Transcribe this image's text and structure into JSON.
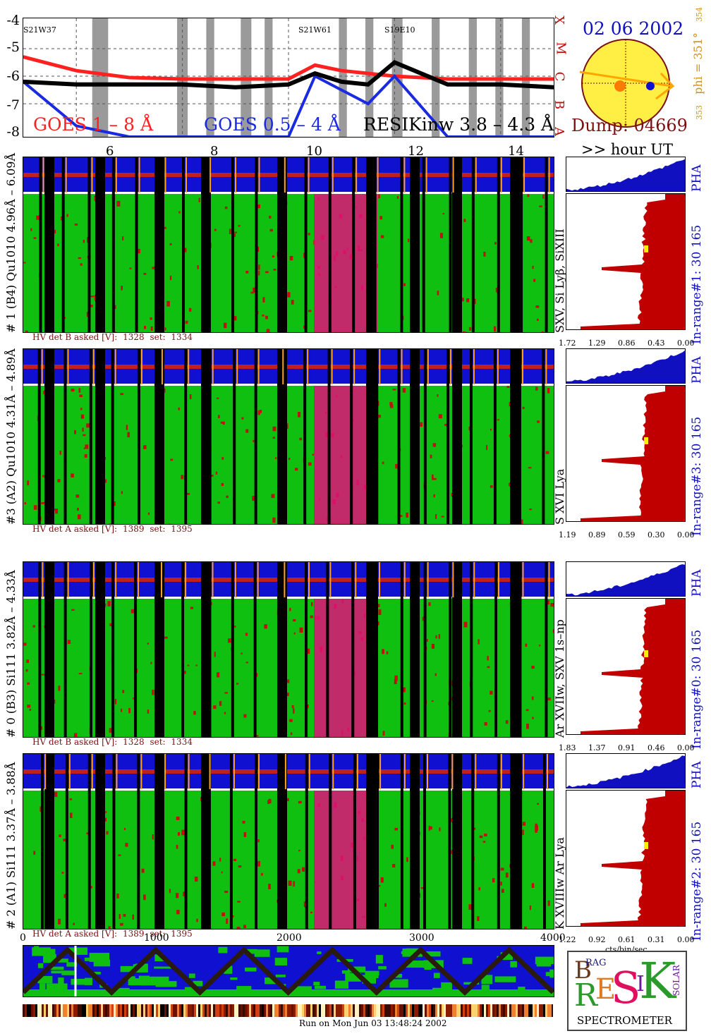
{
  "header": {
    "y_ticks": [
      "-4",
      "-5",
      "-6",
      "-7",
      "-8"
    ],
    "flare_classes": [
      "X",
      "M",
      "C",
      "B",
      "A"
    ],
    "legend_goes_long": "GOES 1 – 8 Å",
    "legend_goes_short": "GOES 0.5 – 4 Å",
    "legend_resik": "RESIKinw 3.8 – 4.3 Å",
    "regions": [
      "S21W37",
      "S21W61",
      "S19E10"
    ],
    "hour_ticks": [
      "6",
      "8",
      "10",
      "12",
      "14"
    ],
    "hour_unit": ">> hour UT"
  },
  "sun": {
    "date": "02 06 2002",
    "dump": "Dump: 04669",
    "phi": "phi = 351°",
    "phi_top": "354",
    "phi_bottom": "353"
  },
  "detectors": [
    {
      "label": "# 1 (B4) Qu1010 4.96Å – 6.09Å",
      "lines": "SXV, Si Lyβ, SiXIII",
      "range": "In-range#1:    30 165",
      "hv_label": "HV det B asked [V]:",
      "hv_asked": "1328",
      "hv_set_label": "set:",
      "hv_set": "1334",
      "scale": [
        "1.72",
        "1.29",
        "0.86",
        "0.43",
        "0.00"
      ],
      "pha": "PHA"
    },
    {
      "label": "#3 (A2) Qu1010  4.31Å – 4.89Å",
      "lines": "S XVI Lya",
      "range": "In-range#3:    30 165",
      "hv_label": "HV det A asked [V]:",
      "hv_asked": "1389",
      "hv_set_label": "set:",
      "hv_set": "1395",
      "scale": [
        "1.19",
        "0.89",
        "0.59",
        "0.30",
        "0.00"
      ],
      "pha": "PHA"
    },
    {
      "label": "# 0 (B3) Si111  3.82Å – 4.33Å",
      "lines": "Ar XVIIw,  SXV 1s–np",
      "range": "In-range#0:    30 165",
      "hv_label": "HV det B asked [V]:",
      "hv_asked": "1328",
      "hv_set_label": "set:",
      "hv_set": "1334",
      "scale": [
        "1.83",
        "1.37",
        "0.91",
        "0.46",
        "0.00"
      ],
      "pha": "PHA"
    },
    {
      "label": "# 2 (A1) Si111  3.37Å – 3.88Å",
      "lines": "K XVIIIw   Ar Lya",
      "range": "In-range#2:    30 165",
      "hv_label": "HV det A asked [V]:",
      "hv_asked": "1389",
      "hv_set_label": "set:",
      "hv_set": "1395",
      "scale": [
        "1.22",
        "0.92",
        "0.61",
        "0.31",
        "0.00"
      ],
      "pha": "PHA"
    }
  ],
  "bottom": {
    "x_ticks": [
      "0",
      "1000",
      "2000",
      "3000",
      "4000"
    ],
    "cts_unit": "cts/bin/sec",
    "footer": "Run on Mon Jun 03 13:48:24 2002"
  },
  "logo": {
    "title": "SPECTROMETER",
    "letters": [
      "B",
      "RAG",
      "R",
      "E",
      "S",
      "I",
      "K",
      "SOLAR"
    ]
  },
  "colors": {
    "goes_long": "#ff2020",
    "goes_short": "#1a2ae0",
    "resik": "#000000",
    "spectrum_bg": "#1010d0",
    "spectrum_fg": "#10c010",
    "spectrum_hot": "#e0107a",
    "histogram": "#c00000",
    "pha": "#1010c0"
  },
  "chart_data": [
    {
      "type": "line",
      "x": [
        5,
        6,
        7,
        8,
        9,
        10,
        10.5,
        11,
        11.5,
        12,
        13,
        14,
        15
      ],
      "series": [
        {
          "name": "GOES 1 – 8 Å",
          "values": [
            -5.3,
            -5.8,
            -6.05,
            -6.1,
            -6.1,
            -6.1,
            -5.6,
            -5.8,
            -5.9,
            -6.0,
            -6.1,
            -6.1,
            -6.1
          ]
        },
        {
          "name": "GOES 0.5 – 4 Å",
          "values": [
            -6.2,
            -7.8,
            -8.2,
            -8.2,
            -8.2,
            -8.2,
            -6.0,
            -6.5,
            -7.0,
            -6.0,
            -8.2,
            -8.2,
            -8.2
          ]
        },
        {
          "name": "RESIKinw 3.8 – 4.3 Å",
          "values": [
            -6.2,
            -6.3,
            -6.3,
            -6.3,
            -6.4,
            -6.3,
            -5.9,
            -6.2,
            -6.3,
            -5.5,
            -6.3,
            -6.3,
            -6.4
          ]
        }
      ],
      "ylim": [
        -8.2,
        -3.9
      ],
      "xlim": [
        5.0,
        15.0
      ]
    }
  ]
}
